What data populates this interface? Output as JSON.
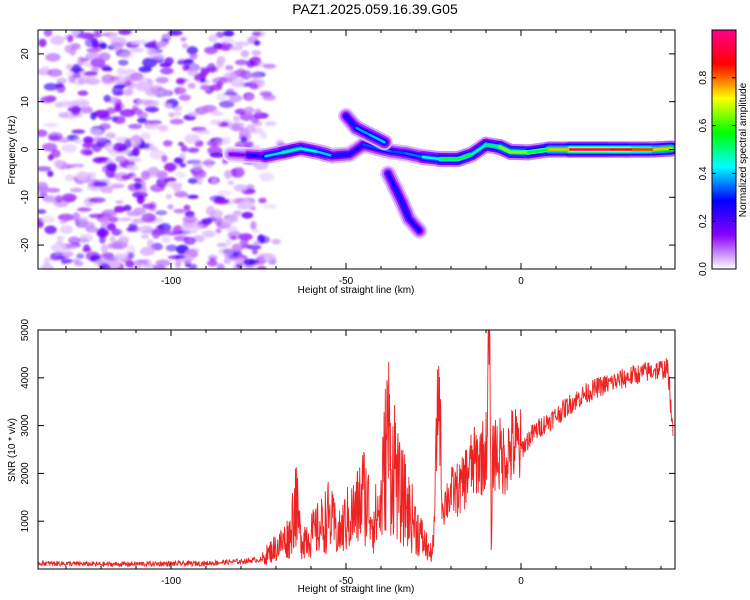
{
  "title": "PAZ1.2025.059.16.39.G05",
  "chart_data": [
    {
      "type": "heatmap",
      "xlabel": "Height of straight line (km)",
      "ylabel": "Frequency (Hz)",
      "xlim": [
        -138,
        44
      ],
      "ylim": [
        -25,
        25
      ],
      "xticks": [
        -100,
        -50,
        0
      ],
      "yticks": [
        -20,
        -10,
        0,
        10,
        20
      ],
      "colorbar": {
        "label": "Normalized spectral amplitude",
        "range": [
          0,
          1
        ],
        "ticks": [
          "0.0",
          "0.2",
          "0.4",
          "0.6",
          "0.8"
        ],
        "tick_values": [
          0,
          0.2,
          0.4,
          0.6,
          0.8
        ],
        "colors": [
          "#ffffff",
          "#8800ff",
          "#0000ff",
          "#00ffff",
          "#00ff00",
          "#ffff00",
          "#ff0000",
          "#ff0088"
        ]
      },
      "noise_region_x": [
        -138,
        -74
      ],
      "main_ridge": [
        {
          "x": -83,
          "freq": -1.0,
          "amp": 0.1
        },
        {
          "x": -78,
          "freq": -1.2,
          "amp": 0.22
        },
        {
          "x": -73,
          "freq": -1.4,
          "amp": 0.32
        },
        {
          "x": -68,
          "freq": -0.6,
          "amp": 0.5
        },
        {
          "x": -63,
          "freq": 0.2,
          "amp": 0.45
        },
        {
          "x": -58,
          "freq": -0.5,
          "amp": 0.45
        },
        {
          "x": -54,
          "freq": -1.3,
          "amp": 0.35
        },
        {
          "x": -49,
          "freq": -1.0,
          "amp": 0.25
        },
        {
          "x": -45,
          "freq": 1.0,
          "amp": 0.3
        },
        {
          "x": -41,
          "freq": 0.3,
          "amp": 0.35
        },
        {
          "x": -37,
          "freq": -0.4,
          "amp": 0.35
        },
        {
          "x": -33,
          "freq": -0.8,
          "amp": 0.3
        },
        {
          "x": -28,
          "freq": -1.6,
          "amp": 0.4
        },
        {
          "x": -23,
          "freq": -2.0,
          "amp": 0.5
        },
        {
          "x": -18,
          "freq": -2.0,
          "amp": 0.6
        },
        {
          "x": -14,
          "freq": -1.0,
          "amp": 0.5
        },
        {
          "x": -10,
          "freq": 1.0,
          "amp": 0.45
        },
        {
          "x": -6,
          "freq": 0.5,
          "amp": 0.6
        },
        {
          "x": -3,
          "freq": -0.5,
          "amp": 0.7
        },
        {
          "x": 2,
          "freq": -0.6,
          "amp": 0.6
        },
        {
          "x": 8,
          "freq": 0.0,
          "amp": 0.55
        },
        {
          "x": 14,
          "freq": 0.0,
          "amp": 0.95
        },
        {
          "x": 20,
          "freq": 0.0,
          "amp": 1.0
        },
        {
          "x": 26,
          "freq": 0.0,
          "amp": 0.95
        },
        {
          "x": 32,
          "freq": 0.0,
          "amp": 0.85
        },
        {
          "x": 38,
          "freq": 0.0,
          "amp": 0.8
        },
        {
          "x": 43,
          "freq": 0.2,
          "amp": 0.7
        }
      ],
      "upper_branch": [
        {
          "x": -50,
          "freq": 7.0,
          "amp": 0.25
        },
        {
          "x": -47,
          "freq": 4.5,
          "amp": 0.35
        },
        {
          "x": -43,
          "freq": 3.0,
          "amp": 0.4
        },
        {
          "x": -39,
          "freq": 1.5,
          "amp": 0.4
        }
      ],
      "lower_branch": [
        {
          "x": -38,
          "freq": -5.0,
          "amp": 0.25
        },
        {
          "x": -36,
          "freq": -8.0,
          "amp": 0.3
        },
        {
          "x": -34,
          "freq": -11.0,
          "amp": 0.3
        },
        {
          "x": -32,
          "freq": -14.5,
          "amp": 0.3
        },
        {
          "x": -29,
          "freq": -17.0,
          "amp": 0.25
        }
      ]
    },
    {
      "type": "line",
      "xlabel": "Height of straight line (km)",
      "ylabel": "SNR (10 * v/v)",
      "xlim": [
        -138,
        44
      ],
      "ylim": [
        0,
        5000
      ],
      "xticks": [
        -100,
        -50,
        0
      ],
      "yticks": [
        1000,
        2000,
        3000,
        4000,
        5000
      ],
      "series_color": "#ee2222",
      "points": [
        [
          -138,
          120
        ],
        [
          -120,
          100
        ],
        [
          -100,
          110
        ],
        [
          -90,
          120
        ],
        [
          -80,
          160
        ],
        [
          -74,
          200
        ],
        [
          -72,
          350
        ],
        [
          -69,
          500
        ],
        [
          -66,
          700
        ],
        [
          -64.5,
          1500
        ],
        [
          -63,
          650
        ],
        [
          -60,
          700
        ],
        [
          -57,
          900
        ],
        [
          -55,
          1100
        ],
        [
          -52,
          700
        ],
        [
          -50,
          1000
        ],
        [
          -47,
          1200
        ],
        [
          -45,
          1600
        ],
        [
          -42,
          1000
        ],
        [
          -40,
          1300
        ],
        [
          -38,
          3000
        ],
        [
          -37,
          2000
        ],
        [
          -36,
          2300
        ],
        [
          -35,
          1600
        ],
        [
          -33,
          1400
        ],
        [
          -32,
          1200
        ],
        [
          -30,
          900
        ],
        [
          -28,
          600
        ],
        [
          -26,
          350
        ],
        [
          -25,
          450
        ],
        [
          -23.5,
          4250
        ],
        [
          -22.5,
          1300
        ],
        [
          -20,
          1600
        ],
        [
          -17,
          1700
        ],
        [
          -15,
          2100
        ],
        [
          -12,
          2300
        ],
        [
          -10,
          2400
        ],
        [
          -9,
          5050
        ],
        [
          -8.5,
          400
        ],
        [
          -8,
          2500
        ],
        [
          -5,
          2300
        ],
        [
          -2,
          2600
        ],
        [
          0,
          2500
        ],
        [
          3,
          2800
        ],
        [
          6,
          3000
        ],
        [
          10,
          3200
        ],
        [
          14,
          3450
        ],
        [
          18,
          3650
        ],
        [
          22,
          3800
        ],
        [
          26,
          3900
        ],
        [
          30,
          4000
        ],
        [
          34,
          4100
        ],
        [
          38,
          4150
        ],
        [
          42,
          4200
        ],
        [
          43.5,
          2700
        ]
      ]
    }
  ]
}
